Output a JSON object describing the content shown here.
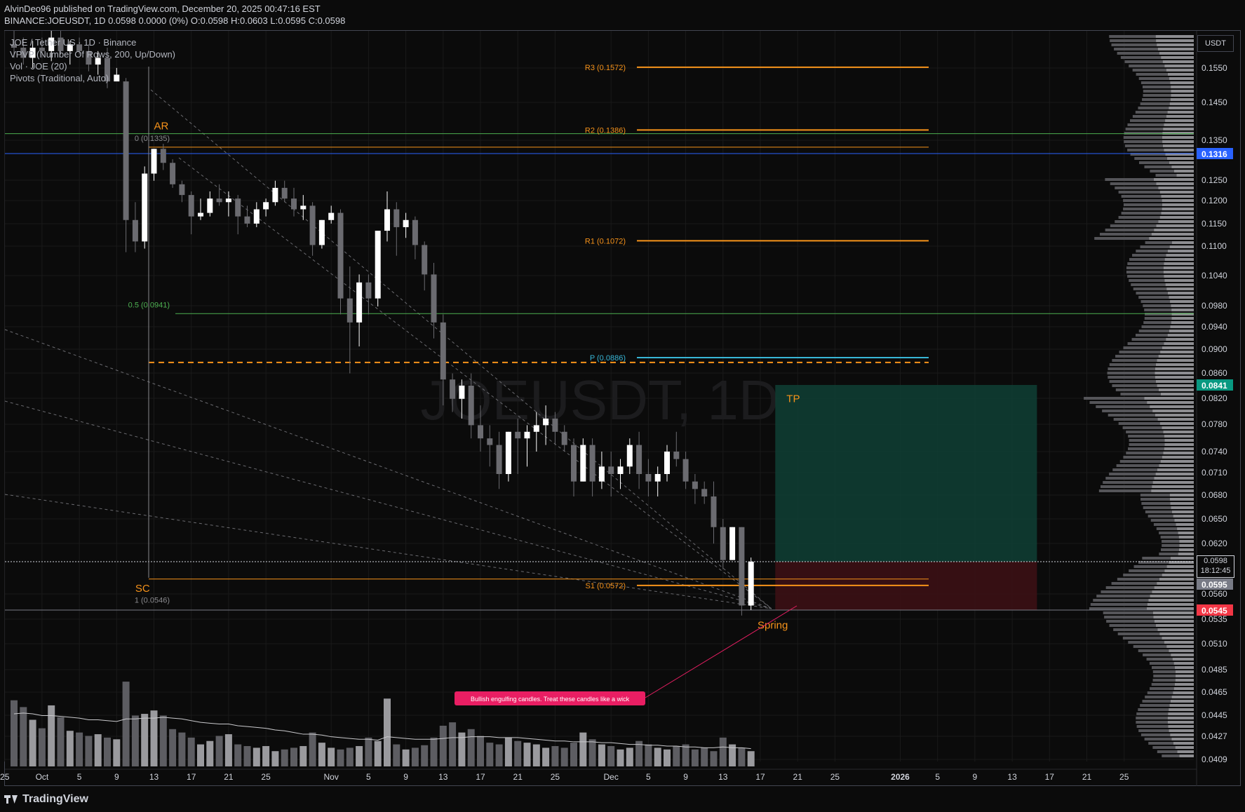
{
  "header": {
    "published": "AlvinDeo96 published on TradingView.com, December 20, 2025 00:47:16 EST",
    "ohlc": "BINANCE:JOEUSDT, 1D 0.0598 0.0000 (0%) O:0.0598 H:0.0603 L:0.0595 C:0.0598"
  },
  "indicators": [
    "JOE / Tether US · 1D · Binance",
    "VPVP (Number Of Rows, 200, Up/Down)",
    "Vol · JOE (20)",
    "Pivots (Traditional, Auto)"
  ],
  "currency": "USDT",
  "cursor": {
    "price": "0.0598",
    "countdown": "18:12:45"
  },
  "footer": {
    "brand": "TradingView"
  },
  "colors": {
    "bg": "#0b0b0b",
    "grid": "#1a1a1a",
    "bull": "#ffffff",
    "bear": "#6b6b70",
    "pivot": "#f7931a",
    "pivotP": "#38b6d6",
    "fib": "#4caf50",
    "blue": "#2962ff",
    "tpFill": "#0f3f35",
    "slFill": "#3b0f14",
    "note": "#e91e63",
    "vol": "#5d5d62",
    "volBull": "#9a9a9e"
  },
  "chart_data": {
    "type": "candlestick",
    "symbol": "JOEUSDT",
    "interval": "1D",
    "watermark": "JOEUSDT, 1D",
    "ylim": [
      0.0405,
      0.168
    ],
    "ytick_labels": [
      "0.1550",
      "0.1450",
      "0.1350",
      "0.1250",
      "0.1200",
      "0.1150",
      "0.1100",
      "0.1040",
      "0.0980",
      "0.0940",
      "0.0900",
      "0.0860",
      "0.0820",
      "0.0780",
      "0.0740",
      "0.0710",
      "0.0680",
      "0.0650",
      "0.0620",
      "0.0560",
      "0.0535",
      "0.0510",
      "0.0485",
      "0.0465",
      "0.0445",
      "0.0427",
      "0.0409"
    ],
    "ytick_values": [
      0.155,
      0.145,
      0.135,
      0.125,
      0.12,
      0.115,
      0.11,
      0.104,
      0.098,
      0.094,
      0.09,
      0.086,
      0.082,
      0.078,
      0.074,
      0.071,
      0.068,
      0.065,
      0.062,
      0.056,
      0.0535,
      0.051,
      0.0485,
      0.0465,
      0.0445,
      0.0427,
      0.0409
    ],
    "price_badges": [
      {
        "label": "0.1316",
        "value": 0.1316,
        "color": "#2962ff"
      },
      {
        "label": "0.0841",
        "value": 0.0841,
        "color": "#089981"
      },
      {
        "label": "0.0595",
        "value": 0.0595,
        "color": "#787b86"
      },
      {
        "label": "0.0545",
        "value": 0.0545,
        "color": "#f23645"
      }
    ],
    "xtick_labels": [
      "25",
      "Oct",
      "5",
      "9",
      "13",
      "17",
      "21",
      "25",
      "Nov",
      "5",
      "9",
      "13",
      "17",
      "21",
      "25",
      "Dec",
      "5",
      "9",
      "13",
      "17",
      "21",
      "25",
      "2026",
      "5",
      "9",
      "13",
      "17",
      "21",
      "25"
    ],
    "xtick_dayidx": [
      -1,
      3,
      7,
      11,
      15,
      19,
      23,
      27,
      34,
      38,
      42,
      46,
      50,
      54,
      58,
      64,
      68,
      72,
      76,
      80,
      84,
      88,
      95,
      99,
      103,
      107,
      111,
      115,
      119
    ],
    "candles": [
      [
        0.164,
        0.168,
        0.16,
        0.163
      ],
      [
        0.163,
        0.166,
        0.158,
        0.16
      ],
      [
        0.16,
        0.165,
        0.157,
        0.163
      ],
      [
        0.163,
        0.166,
        0.16,
        0.162
      ],
      [
        0.162,
        0.168,
        0.159,
        0.166
      ],
      [
        0.166,
        0.168,
        0.161,
        0.162
      ],
      [
        0.162,
        0.165,
        0.158,
        0.164
      ],
      [
        0.164,
        0.166,
        0.161,
        0.162
      ],
      [
        0.162,
        0.164,
        0.156,
        0.158
      ],
      [
        0.158,
        0.162,
        0.155,
        0.16
      ],
      [
        0.16,
        0.163,
        0.151,
        0.153
      ],
      [
        0.153,
        0.157,
        0.154,
        0.155
      ],
      [
        0.153,
        0.154,
        0.104,
        0.113
      ],
      [
        0.113,
        0.118,
        0.104,
        0.107
      ],
      [
        0.107,
        0.128,
        0.105,
        0.126
      ],
      [
        0.126,
        0.133,
        0.124,
        0.133
      ],
      [
        0.133,
        0.1345,
        0.127,
        0.129
      ],
      [
        0.129,
        0.13,
        0.122,
        0.123
      ],
      [
        0.123,
        0.124,
        0.118,
        0.12
      ],
      [
        0.12,
        0.121,
        0.109,
        0.114
      ],
      [
        0.114,
        0.119,
        0.113,
        0.115
      ],
      [
        0.115,
        0.121,
        0.114,
        0.119
      ],
      [
        0.119,
        0.123,
        0.117,
        0.118
      ],
      [
        0.118,
        0.121,
        0.114,
        0.119
      ],
      [
        0.119,
        0.12,
        0.109,
        0.114
      ],
      [
        0.114,
        0.117,
        0.111,
        0.112
      ],
      [
        0.112,
        0.118,
        0.111,
        0.116
      ],
      [
        0.116,
        0.119,
        0.114,
        0.118
      ],
      [
        0.118,
        0.124,
        0.117,
        0.122
      ],
      [
        0.122,
        0.124,
        0.118,
        0.119
      ],
      [
        0.119,
        0.122,
        0.114,
        0.116
      ],
      [
        0.116,
        0.12,
        0.113,
        0.117
      ],
      [
        0.117,
        0.118,
        0.103,
        0.106
      ],
      [
        0.106,
        0.113,
        0.105,
        0.113
      ],
      [
        0.113,
        0.117,
        0.112,
        0.115
      ],
      [
        0.115,
        0.116,
        0.094,
        0.096
      ],
      [
        0.096,
        0.1,
        0.086,
        0.093
      ],
      [
        0.093,
        0.099,
        0.09,
        0.098
      ],
      [
        0.098,
        0.099,
        0.094,
        0.096
      ],
      [
        0.096,
        0.11,
        0.095,
        0.11
      ],
      [
        0.11,
        0.121,
        0.107,
        0.116
      ],
      [
        0.116,
        0.118,
        0.103,
        0.111
      ],
      [
        0.111,
        0.115,
        0.108,
        0.113
      ],
      [
        0.113,
        0.114,
        0.102,
        0.106
      ],
      [
        0.106,
        0.107,
        0.097,
        0.099
      ],
      [
        0.099,
        0.101,
        0.091,
        0.093
      ],
      [
        0.093,
        0.094,
        0.081,
        0.085
      ],
      [
        0.085,
        0.086,
        0.08,
        0.082
      ],
      [
        0.082,
        0.085,
        0.079,
        0.084
      ],
      [
        0.084,
        0.086,
        0.076,
        0.078
      ],
      [
        0.078,
        0.081,
        0.074,
        0.076
      ],
      [
        0.076,
        0.078,
        0.072,
        0.075
      ],
      [
        0.075,
        0.077,
        0.069,
        0.071
      ],
      [
        0.071,
        0.077,
        0.07,
        0.077
      ],
      [
        0.077,
        0.079,
        0.071,
        0.076
      ],
      [
        0.076,
        0.078,
        0.072,
        0.077
      ],
      [
        0.077,
        0.08,
        0.074,
        0.078
      ],
      [
        0.078,
        0.081,
        0.075,
        0.079
      ],
      [
        0.079,
        0.08,
        0.075,
        0.077
      ],
      [
        0.077,
        0.078,
        0.074,
        0.075
      ],
      [
        0.075,
        0.076,
        0.068,
        0.07
      ],
      [
        0.07,
        0.076,
        0.07,
        0.075
      ],
      [
        0.075,
        0.076,
        0.068,
        0.07
      ],
      [
        0.07,
        0.074,
        0.069,
        0.072
      ],
      [
        0.072,
        0.074,
        0.068,
        0.071
      ],
      [
        0.071,
        0.073,
        0.069,
        0.072
      ],
      [
        0.072,
        0.076,
        0.071,
        0.075
      ],
      [
        0.075,
        0.077,
        0.069,
        0.071
      ],
      [
        0.071,
        0.073,
        0.068,
        0.07
      ],
      [
        0.07,
        0.072,
        0.068,
        0.071
      ],
      [
        0.071,
        0.075,
        0.07,
        0.074
      ],
      [
        0.074,
        0.077,
        0.072,
        0.073
      ],
      [
        0.073,
        0.074,
        0.069,
        0.07
      ],
      [
        0.07,
        0.071,
        0.067,
        0.069
      ],
      [
        0.069,
        0.07,
        0.067,
        0.068
      ],
      [
        0.068,
        0.07,
        0.062,
        0.064
      ],
      [
        0.064,
        0.065,
        0.059,
        0.06
      ],
      [
        0.06,
        0.064,
        0.06,
        0.064
      ],
      [
        0.064,
        0.064,
        0.054,
        0.055
      ],
      [
        0.055,
        0.0603,
        0.0545,
        0.0598
      ]
    ],
    "volume_ylim": [
      0,
      110
    ],
    "volume": [
      78,
      70,
      55,
      45,
      72,
      58,
      42,
      40,
      36,
      38,
      34,
      32,
      100,
      60,
      62,
      66,
      60,
      44,
      40,
      34,
      26,
      30,
      36,
      38,
      26,
      24,
      22,
      24,
      18,
      20,
      22,
      24,
      40,
      28,
      22,
      20,
      22,
      24,
      34,
      30,
      80,
      26,
      20,
      22,
      25,
      34,
      48,
      52,
      40,
      44,
      36,
      28,
      26,
      34,
      30,
      28,
      26,
      22,
      24,
      22,
      28,
      40,
      32,
      26,
      24,
      20,
      22,
      30,
      26,
      22,
      20,
      24,
      26,
      20,
      22,
      18,
      34,
      26,
      22,
      18
    ],
    "volume_ma": [
      62,
      63,
      62,
      60,
      60,
      59,
      58,
      57,
      55,
      55,
      54,
      53,
      56,
      56,
      57,
      57,
      58,
      57,
      56,
      54,
      52,
      51,
      50,
      50,
      48,
      47,
      46,
      45,
      43,
      42,
      40,
      38,
      38,
      37,
      35,
      34,
      33,
      32,
      32,
      31,
      35,
      34,
      33,
      32,
      32,
      32,
      33,
      34,
      34,
      35,
      35,
      35,
      34,
      34,
      34,
      33,
      32,
      31,
      30,
      30,
      29,
      29,
      29,
      28,
      28,
      27,
      26,
      26,
      25,
      25,
      24,
      24,
      23,
      23,
      22,
      22,
      23,
      22,
      22,
      21
    ],
    "pivots": [
      {
        "label": "R3 (0.1572)",
        "value": 0.1572
      },
      {
        "label": "R2 (0.1386)",
        "value": 0.1386
      },
      {
        "label": "R1 (0.1072)",
        "value": 0.1072
      },
      {
        "label": "P (0.0886)",
        "value": 0.0886
      },
      {
        "label": "S1 (0.0572)",
        "value": 0.0572
      }
    ],
    "fib_levels": [
      {
        "label": "0 (0.1335)",
        "value": 0.1335
      },
      {
        "label": "0.5 (0.0941)",
        "value": 0.0941
      },
      {
        "label": "1 (0.0546)",
        "value": 0.0546
      }
    ],
    "horizontal_lines": [
      {
        "value": 0.1375,
        "color": "#4caf50"
      },
      {
        "value": 0.1316,
        "color": "#2962ff"
      },
      {
        "value": 0.1335,
        "color": "#f7931a"
      },
      {
        "value": 0.0941,
        "color": "#4caf50"
      },
      {
        "value": 0.0878,
        "color": "#f7931a",
        "dashed": true
      },
      {
        "value": 0.0579,
        "color": "#f7931a"
      },
      {
        "value": 0.0598,
        "color": "#d1d4dc",
        "dotted": true
      },
      {
        "value": 0.0545,
        "color": "#787b86"
      }
    ],
    "annotations": [
      {
        "text": "AR",
        "dayidx": 15,
        "value": 0.1388
      },
      {
        "text": "SC",
        "dayidx": 13,
        "value": 0.0565
      },
      {
        "text": "Spring",
        "dayidx": 80,
        "value": 0.0528
      },
      {
        "text": "TP",
        "dayidx": 84,
        "value": 0.0815
      }
    ],
    "note": "Bullish engulfing candles. Treat these candles like a wick",
    "position": {
      "entry": 0.0598,
      "target": 0.0841,
      "stop": 0.0545,
      "start_dayidx": 81,
      "end_dayidx": 108
    }
  }
}
